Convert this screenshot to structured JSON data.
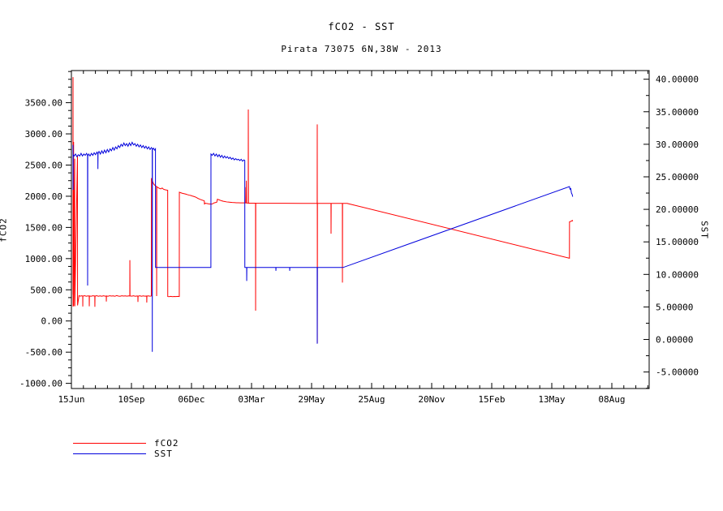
{
  "title": "fCO2 - SST",
  "subtitle": "Pirata 73075 6N,38W - 2013",
  "legend": {
    "entries": [
      {
        "label": "fCO2"
      },
      {
        "label": "SST"
      }
    ]
  },
  "chart_data": {
    "type": "line",
    "title": "fCO2 - SST",
    "subtitle": "Pirata 73075 6N,38W - 2013",
    "grid": false,
    "legend_position": "bottom-left",
    "x_axis": {
      "unit": "days-since-15Jun",
      "range": [
        0,
        837.1
      ],
      "tick_values": [
        0,
        87,
        174,
        261,
        348,
        435,
        522,
        609,
        696,
        783
      ],
      "tick_labels": [
        "15Jun",
        "10Sep",
        "06Dec",
        "03Mar",
        "29May",
        "25Aug",
        "20Nov",
        "15Feb",
        "13May",
        "08Aug"
      ],
      "minor_step": 17.4
    },
    "y_left": {
      "label": "fCO2",
      "range": [
        -1083,
        4015
      ],
      "tick_values": [
        -1000,
        -500,
        0,
        500,
        1000,
        1500,
        2000,
        2500,
        3000,
        3500
      ],
      "tick_labels": [
        "-1000.00",
        "-500.00",
        "0.00",
        "500.00",
        "1000.00",
        "1500.00",
        "2000.00",
        "2500.00",
        "3000.00",
        "3500.00"
      ],
      "minor_step": 125
    },
    "y_right": {
      "label": "SST",
      "range": [
        -7.54,
        41.33
      ],
      "tick_values": [
        -5,
        0,
        5,
        10,
        15,
        20,
        25,
        30,
        35,
        40
      ],
      "tick_labels": [
        "-5.00000",
        "0.00000",
        "5.00000",
        "10.00000",
        "15.00000",
        "20.00000",
        "25.00000",
        "30.00000",
        "35.00000",
        "40.00000"
      ],
      "minor_step": 2.5
    },
    "series": [
      {
        "name": "fCO2",
        "axis": "left",
        "color": "#ff0000",
        "points": [
          [
            2.3,
            420
          ],
          [
            2.35,
            3910
          ],
          [
            2.45,
            230
          ],
          [
            3.2,
            2870
          ],
          [
            3.3,
            240
          ],
          [
            4.8,
            2600
          ],
          [
            4.9,
            235
          ],
          [
            8.8,
            2650
          ],
          [
            8.9,
            250
          ],
          [
            11,
            405
          ],
          [
            13,
            398
          ],
          [
            15,
            404
          ],
          [
            16.4,
            399
          ],
          [
            16.5,
            232
          ],
          [
            16.6,
            398
          ],
          [
            19,
            406
          ],
          [
            21.5,
            396
          ],
          [
            24,
            403
          ],
          [
            25.8,
            399
          ],
          [
            25.9,
            236
          ],
          [
            26.1,
            401
          ],
          [
            28.5,
            397
          ],
          [
            31,
            404
          ],
          [
            33.9,
            400
          ],
          [
            34,
            228
          ],
          [
            34.2,
            398
          ],
          [
            36.5,
            405
          ],
          [
            39,
            397
          ],
          [
            41.5,
            403
          ],
          [
            44,
            396
          ],
          [
            46.5,
            404
          ],
          [
            49,
            398
          ],
          [
            50.5,
            399
          ],
          [
            50.6,
            312
          ],
          [
            50.8,
            401
          ],
          [
            53,
            397
          ],
          [
            55.5,
            405
          ],
          [
            58,
            399
          ],
          [
            60.5,
            403
          ],
          [
            63,
            396
          ],
          [
            65.5,
            407
          ],
          [
            68,
            400
          ],
          [
            70.5,
            397
          ],
          [
            73,
            404
          ],
          [
            75.5,
            399
          ],
          [
            78,
            403
          ],
          [
            80.5,
            398
          ],
          [
            83,
            402
          ],
          [
            84.6,
            400
          ],
          [
            84.7,
            975
          ],
          [
            84.9,
            402
          ],
          [
            87.5,
            398
          ],
          [
            90,
            404
          ],
          [
            92.5,
            397
          ],
          [
            95,
            401
          ],
          [
            96.3,
            399
          ],
          [
            96.4,
            305
          ],
          [
            96.6,
            398
          ],
          [
            99,
            404
          ],
          [
            101.5,
            397
          ],
          [
            104,
            402
          ],
          [
            106.5,
            398
          ],
          [
            109.1,
            400
          ],
          [
            109.2,
            296
          ],
          [
            109.4,
            399
          ],
          [
            111.5,
            403
          ],
          [
            113.5,
            398
          ],
          [
            115.8,
            400
          ],
          [
            116,
            2290
          ],
          [
            117.5,
            2240
          ],
          [
            119,
            2200
          ],
          [
            120.5,
            2180
          ],
          [
            122,
            2165
          ],
          [
            123.4,
            2158
          ],
          [
            123.5,
            400
          ],
          [
            123.7,
            2150
          ],
          [
            125.5,
            2140
          ],
          [
            127.5,
            2125
          ],
          [
            129.5,
            2118
          ],
          [
            131.5,
            2132
          ],
          [
            133.5,
            2112
          ],
          [
            135.5,
            2105
          ],
          [
            137.5,
            2100
          ],
          [
            139.5,
            2096
          ],
          [
            139.6,
            392
          ],
          [
            141.5,
            390
          ],
          [
            144,
            394
          ],
          [
            146.5,
            390
          ],
          [
            149,
            393
          ],
          [
            151.5,
            391
          ],
          [
            154,
            394
          ],
          [
            156.3,
            392
          ],
          [
            156.4,
            2065
          ],
          [
            158,
            2058
          ],
          [
            160.5,
            2048
          ],
          [
            163,
            2042
          ],
          [
            165.5,
            2035
          ],
          [
            168,
            2026
          ],
          [
            170.5,
            2018
          ],
          [
            173,
            2012
          ],
          [
            175.5,
            2002
          ],
          [
            178,
            1994
          ],
          [
            180.5,
            1984
          ],
          [
            183,
            1968
          ],
          [
            185.5,
            1955
          ],
          [
            187,
            1948
          ],
          [
            189,
            1940
          ],
          [
            191,
            1932
          ],
          [
            192.6,
            1925
          ],
          [
            192.8,
            1868
          ],
          [
            193.2,
            1890
          ],
          [
            195,
            1886
          ],
          [
            197,
            1882
          ],
          [
            199,
            1878
          ],
          [
            201,
            1876
          ],
          [
            203,
            1874
          ],
          [
            204.6,
            1880
          ],
          [
            206.5,
            1892
          ],
          [
            208.5,
            1898
          ],
          [
            210.5,
            1902
          ],
          [
            211.6,
            1953
          ],
          [
            212.5,
            1948
          ],
          [
            214,
            1942
          ],
          [
            216,
            1933
          ],
          [
            218,
            1926
          ],
          [
            220,
            1920
          ],
          [
            222.5,
            1914
          ],
          [
            225,
            1909
          ],
          [
            227.5,
            1906
          ],
          [
            230,
            1903
          ],
          [
            233,
            1900
          ],
          [
            236,
            1898
          ],
          [
            239,
            1896
          ],
          [
            242,
            1895
          ],
          [
            245,
            1894
          ],
          [
            248,
            1893
          ],
          [
            251.5,
            1893
          ],
          [
            251.7,
            2145
          ],
          [
            251.9,
            1893
          ],
          [
            253.3,
            1893
          ],
          [
            253.5,
            2250
          ],
          [
            253.7,
            1892
          ],
          [
            255.5,
            1890
          ],
          [
            256.2,
            1890
          ],
          [
            256.3,
            3390
          ],
          [
            256.5,
            1888
          ],
          [
            262,
            1888
          ],
          [
            266.8,
            1888
          ],
          [
            266.9,
            165
          ],
          [
            267.1,
            1888
          ],
          [
            285,
            1887
          ],
          [
            310,
            1887
          ],
          [
            335,
            1886
          ],
          [
            356.1,
            1886
          ],
          [
            356.2,
            3152
          ],
          [
            356.35,
            -355
          ],
          [
            356.5,
            1886
          ],
          [
            375,
            1886
          ],
          [
            376.1,
            1886
          ],
          [
            376.2,
            1400
          ],
          [
            376.4,
            1886
          ],
          [
            390,
            1885
          ],
          [
            392.6,
            1885
          ],
          [
            392.7,
            616
          ],
          [
            392.9,
            1885
          ],
          [
            400,
            1885
          ],
          [
            400.1,
            1884
          ],
          [
            721.6,
            1006
          ],
          [
            721.7,
            1591
          ],
          [
            723.5,
            1596
          ],
          [
            725.8,
            1612
          ],
          [
            726.3,
            1598
          ]
        ]
      },
      {
        "name": "SST",
        "axis": "right",
        "color": "#0000dd",
        "points": [
          [
            2.3,
            29.9
          ],
          [
            2.4,
            23.0
          ],
          [
            2.6,
            28.4
          ],
          [
            4,
            28.2
          ],
          [
            6,
            28.5
          ],
          [
            8,
            28.1
          ],
          [
            10,
            28.4
          ],
          [
            12,
            28.2
          ],
          [
            14,
            28.6
          ],
          [
            16,
            28.2
          ],
          [
            18,
            28.5
          ],
          [
            20,
            28.3
          ],
          [
            22,
            28.6
          ],
          [
            23.4,
            28.3
          ],
          [
            23.5,
            8.3
          ],
          [
            23.7,
            28.2
          ],
          [
            25,
            28.5
          ],
          [
            27,
            28.2
          ],
          [
            29,
            28.6
          ],
          [
            31,
            28.3
          ],
          [
            33,
            28.7
          ],
          [
            35,
            28.4
          ],
          [
            37,
            28.8
          ],
          [
            38.3,
            28.5
          ],
          [
            38.4,
            26.2
          ],
          [
            38.6,
            28.6
          ],
          [
            40,
            28.9
          ],
          [
            42,
            28.5
          ],
          [
            44,
            29.0
          ],
          [
            46,
            28.6
          ],
          [
            48,
            29.1
          ],
          [
            50,
            28.7
          ],
          [
            52,
            29.2
          ],
          [
            54,
            28.8
          ],
          [
            56,
            29.3
          ],
          [
            58,
            29.0
          ],
          [
            60,
            29.5
          ],
          [
            62,
            29.1
          ],
          [
            64,
            29.6
          ],
          [
            66,
            29.3
          ],
          [
            68,
            29.8
          ],
          [
            70,
            29.5
          ],
          [
            72,
            30.0
          ],
          [
            74,
            29.7
          ],
          [
            76,
            30.2
          ],
          [
            78,
            29.8
          ],
          [
            80,
            30.1
          ],
          [
            82,
            29.7
          ],
          [
            84,
            30.2
          ],
          [
            86,
            29.8
          ],
          [
            88,
            30.3
          ],
          [
            90,
            29.9
          ],
          [
            92,
            30.1
          ],
          [
            94,
            29.7
          ],
          [
            96,
            30.0
          ],
          [
            98,
            29.6
          ],
          [
            100,
            29.9
          ],
          [
            102,
            29.5
          ],
          [
            104,
            29.8
          ],
          [
            106,
            29.4
          ],
          [
            108,
            29.7
          ],
          [
            110,
            29.3
          ],
          [
            112,
            29.6
          ],
          [
            114,
            29.2
          ],
          [
            116,
            29.5
          ],
          [
            117.1,
            29.3
          ],
          [
            117.2,
            -1.9
          ],
          [
            117.4,
            29.2
          ],
          [
            119,
            29.4
          ],
          [
            120.5,
            29.1
          ],
          [
            121.8,
            29.3
          ],
          [
            121.9,
            11.06
          ],
          [
            160,
            11.06
          ],
          [
            202.1,
            11.06
          ],
          [
            202.2,
            28.5
          ],
          [
            204,
            28.3
          ],
          [
            206,
            28.6
          ],
          [
            208,
            28.2
          ],
          [
            210,
            28.5
          ],
          [
            212,
            28.1
          ],
          [
            214,
            28.4
          ],
          [
            216,
            28.0
          ],
          [
            218,
            28.3
          ],
          [
            220,
            27.9
          ],
          [
            222,
            28.2
          ],
          [
            224,
            27.9
          ],
          [
            226,
            28.1
          ],
          [
            228,
            27.8
          ],
          [
            230,
            28.0
          ],
          [
            232,
            27.7
          ],
          [
            234,
            27.9
          ],
          [
            236,
            27.6
          ],
          [
            238,
            27.8
          ],
          [
            240,
            27.6
          ],
          [
            242,
            27.7
          ],
          [
            244,
            27.5
          ],
          [
            246,
            27.7
          ],
          [
            248,
            27.4
          ],
          [
            250,
            27.6
          ],
          [
            251.2,
            27.5
          ],
          [
            251.3,
            11.06
          ],
          [
            253.9,
            11.06
          ],
          [
            254,
            9.0
          ],
          [
            254.2,
            11.06
          ],
          [
            296.2,
            11.06
          ],
          [
            296.3,
            10.55
          ],
          [
            296.5,
            11.06
          ],
          [
            316.2,
            11.06
          ],
          [
            316.3,
            10.55
          ],
          [
            316.5,
            11.06
          ],
          [
            356.1,
            11.06
          ],
          [
            356.2,
            -0.65
          ],
          [
            356.4,
            11.06
          ],
          [
            393.5,
            11.06
          ],
          [
            721.6,
            23.5
          ],
          [
            722.3,
            23.1
          ],
          [
            723.5,
            23.2
          ],
          [
            724.5,
            22.5
          ],
          [
            725.5,
            22.3
          ],
          [
            726.3,
            21.95
          ]
        ]
      }
    ]
  }
}
